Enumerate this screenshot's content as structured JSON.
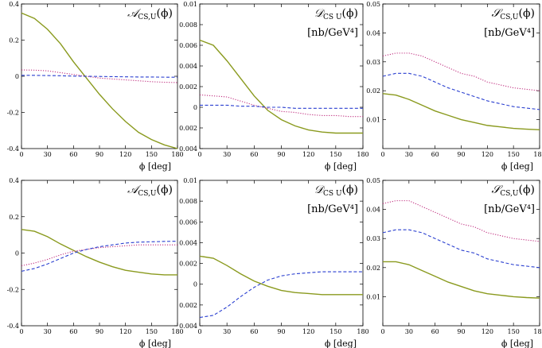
{
  "chart_data": [
    {
      "type": "line",
      "title_symbol": "𝒜",
      "title_subscript": "CS,U",
      "title_arg": "(ϕ)",
      "x_label": "ϕ  [deg]",
      "x": [
        0,
        15,
        30,
        45,
        60,
        75,
        90,
        105,
        120,
        135,
        150,
        165,
        180
      ],
      "xlim": [
        0,
        180
      ],
      "xticks": [
        0,
        30,
        60,
        90,
        120,
        150,
        180
      ],
      "ylim": [
        -0.4,
        0.4
      ],
      "yticks": [
        -0.4,
        -0.2,
        0,
        0.2,
        0.4
      ],
      "series": [
        {
          "color": "#8a9a1e",
          "style": "solid",
          "values": [
            0.35,
            0.32,
            0.26,
            0.18,
            0.08,
            -0.01,
            -0.1,
            -0.18,
            -0.25,
            -0.31,
            -0.35,
            -0.38,
            -0.4
          ]
        },
        {
          "color": "#c03080",
          "style": "dotted",
          "values": [
            0.035,
            0.034,
            0.03,
            0.02,
            0.01,
            0.0,
            -0.01,
            -0.015,
            -0.02,
            -0.025,
            -0.03,
            -0.033,
            -0.035
          ]
        },
        {
          "color": "#2a3fd0",
          "style": "dashed",
          "values": [
            0.005,
            0.005,
            0.004,
            0.003,
            0.001,
            0.0,
            -0.001,
            -0.002,
            -0.003,
            -0.004,
            -0.004,
            -0.005,
            -0.005
          ]
        }
      ]
    },
    {
      "type": "line",
      "title_symbol": "𝒟",
      "title_subscript": "CS U",
      "title_arg": "(ϕ)",
      "units": "[nb/GeV⁴]",
      "x_label": "ϕ  [deg]",
      "x": [
        0,
        15,
        30,
        45,
        60,
        75,
        90,
        105,
        120,
        135,
        150,
        165,
        180
      ],
      "xlim": [
        0,
        180
      ],
      "xticks": [
        0,
        30,
        60,
        90,
        120,
        150,
        180
      ],
      "ylim": [
        -0.004,
        0.01
      ],
      "yticks": [
        {
          "value": -0.004,
          "label": "0.004"
        },
        {
          "value": -0.002,
          "label": "0.002"
        },
        0,
        0.002,
        0.004,
        0.006,
        0.008,
        0.01
      ],
      "series": [
        {
          "color": "#8a9a1e",
          "style": "solid",
          "values": [
            0.0065,
            0.006,
            0.0045,
            0.0028,
            0.0011,
            -0.0003,
            -0.0012,
            -0.0018,
            -0.0022,
            -0.0024,
            -0.0025,
            -0.0025,
            -0.0025
          ]
        },
        {
          "color": "#c03080",
          "style": "dotted",
          "values": [
            0.0012,
            0.0011,
            0.001,
            0.0006,
            0.0002,
            -0.0001,
            -0.0004,
            -0.0005,
            -0.0007,
            -0.0008,
            -0.0008,
            -0.0009,
            -0.0009
          ]
        },
        {
          "color": "#2a3fd0",
          "style": "dashed",
          "values": [
            0.0002,
            0.0002,
            0.0002,
            0.0001,
            0.0001,
            0.0,
            0.0,
            -0.0001,
            -0.0001,
            -0.0001,
            -0.0001,
            -0.0001,
            -0.0001
          ]
        }
      ]
    },
    {
      "type": "line",
      "title_symbol": "𝒮",
      "title_subscript": "CS,U",
      "title_arg": "(ϕ)",
      "units": "[nb/GeV⁴]",
      "x_label": "ϕ  [deg]",
      "x": [
        0,
        15,
        30,
        45,
        60,
        75,
        90,
        105,
        120,
        135,
        150,
        165,
        180
      ],
      "xlim": [
        0,
        180
      ],
      "xticks": [
        0,
        30,
        60,
        90,
        120,
        150,
        180
      ],
      "ylim": [
        0,
        0.05
      ],
      "yticks": [
        0.01,
        0.02,
        0.03,
        0.04,
        0.05
      ],
      "series": [
        {
          "color": "#8a9a1e",
          "style": "solid",
          "values": [
            0.019,
            0.0185,
            0.017,
            0.015,
            0.013,
            0.0115,
            0.01,
            0.009,
            0.008,
            0.0075,
            0.007,
            0.0067,
            0.0065
          ]
        },
        {
          "color": "#c03080",
          "style": "dotted",
          "values": [
            0.032,
            0.033,
            0.033,
            0.032,
            0.03,
            0.028,
            0.026,
            0.025,
            0.023,
            0.022,
            0.021,
            0.0205,
            0.02
          ]
        },
        {
          "color": "#2a3fd0",
          "style": "dashed",
          "values": [
            0.025,
            0.026,
            0.026,
            0.025,
            0.023,
            0.021,
            0.0195,
            0.018,
            0.0165,
            0.0155,
            0.0145,
            0.014,
            0.0135
          ]
        }
      ]
    },
    {
      "type": "line",
      "title_symbol": "𝒜",
      "title_subscript": "CS,U",
      "title_arg": "(ϕ)",
      "x_label": "ϕ  [deg]",
      "x": [
        0,
        15,
        30,
        45,
        60,
        75,
        90,
        105,
        120,
        135,
        150,
        165,
        180
      ],
      "xlim": [
        0,
        180
      ],
      "xticks": [
        0,
        30,
        60,
        90,
        120,
        150,
        180
      ],
      "ylim": [
        -0.4,
        0.4
      ],
      "yticks": [
        -0.4,
        -0.2,
        0,
        0.2,
        0.4
      ],
      "series": [
        {
          "color": "#8a9a1e",
          "style": "solid",
          "values": [
            0.13,
            0.12,
            0.09,
            0.05,
            0.015,
            -0.02,
            -0.05,
            -0.075,
            -0.095,
            -0.105,
            -0.115,
            -0.12,
            -0.12
          ]
        },
        {
          "color": "#c03080",
          "style": "dotted",
          "values": [
            -0.07,
            -0.055,
            -0.035,
            -0.01,
            0.01,
            0.02,
            0.03,
            0.035,
            0.04,
            0.045,
            0.045,
            0.045,
            0.045
          ]
        },
        {
          "color": "#2a3fd0",
          "style": "dashed",
          "values": [
            -0.1,
            -0.085,
            -0.06,
            -0.03,
            0.0,
            0.02,
            0.035,
            0.045,
            0.055,
            0.06,
            0.062,
            0.064,
            0.065
          ]
        }
      ]
    },
    {
      "type": "line",
      "title_symbol": "𝒟",
      "title_subscript": "CS U",
      "title_arg": "(ϕ)",
      "units": "[nb/GeV⁴]",
      "x_label": "ϕ  [deg]",
      "x": [
        0,
        15,
        30,
        45,
        60,
        75,
        90,
        105,
        120,
        135,
        150,
        165,
        180
      ],
      "xlim": [
        0,
        180
      ],
      "xticks": [
        0,
        30,
        60,
        90,
        120,
        150,
        180
      ],
      "ylim": [
        -0.004,
        0.01
      ],
      "yticks": [
        {
          "value": -0.004,
          "label": "0.004"
        },
        {
          "value": -0.002,
          "label": "0.002"
        },
        0,
        0.002,
        0.004,
        0.006,
        0.008,
        0.01
      ],
      "series": [
        {
          "color": "#8a9a1e",
          "style": "solid",
          "values": [
            0.0027,
            0.0025,
            0.0018,
            0.001,
            0.0003,
            -0.0002,
            -0.0006,
            -0.0008,
            -0.0009,
            -0.001,
            -0.001,
            -0.001,
            -0.001
          ]
        },
        {
          "color": "#2a3fd0",
          "style": "dashed",
          "values": [
            -0.0032,
            -0.003,
            -0.0022,
            -0.0012,
            -0.0003,
            0.0004,
            0.0008,
            0.001,
            0.0011,
            0.0012,
            0.0012,
            0.0012,
            0.0012
          ]
        }
      ]
    },
    {
      "type": "line",
      "title_symbol": "𝒮",
      "title_subscript": "CS,U",
      "title_arg": "(ϕ)",
      "units": "[nb/GeV⁴]",
      "x_label": "ϕ  [deg]",
      "x": [
        0,
        15,
        30,
        45,
        60,
        75,
        90,
        105,
        120,
        135,
        150,
        165,
        180
      ],
      "xlim": [
        0,
        180
      ],
      "xticks": [
        0,
        30,
        60,
        90,
        120,
        150,
        180
      ],
      "ylim": [
        0,
        0.05
      ],
      "yticks": [
        0.01,
        0.02,
        0.03,
        0.04,
        0.05
      ],
      "series": [
        {
          "color": "#8a9a1e",
          "style": "solid",
          "values": [
            0.022,
            0.022,
            0.021,
            0.019,
            0.017,
            0.015,
            0.0135,
            0.012,
            0.011,
            0.0105,
            0.01,
            0.0097,
            0.0095
          ]
        },
        {
          "color": "#c03080",
          "style": "dotted",
          "values": [
            0.042,
            0.043,
            0.043,
            0.041,
            0.039,
            0.037,
            0.035,
            0.034,
            0.032,
            0.031,
            0.03,
            0.0295,
            0.029
          ]
        },
        {
          "color": "#2a3fd0",
          "style": "dashed",
          "values": [
            0.032,
            0.033,
            0.033,
            0.032,
            0.03,
            0.028,
            0.026,
            0.025,
            0.023,
            0.022,
            0.021,
            0.0205,
            0.02
          ]
        }
      ]
    }
  ]
}
